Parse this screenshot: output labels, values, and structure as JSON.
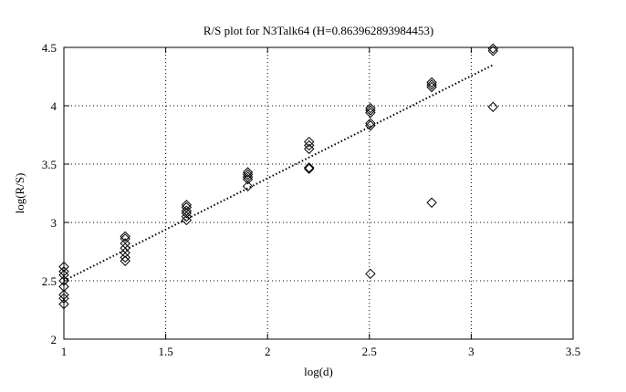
{
  "chart_data": {
    "type": "scatter",
    "title": "R/S plot for N3Talk64 (H=0.863962893984453)",
    "xlabel": "log(d)",
    "ylabel": "log(R/S)",
    "xlim": [
      1,
      3.5
    ],
    "ylim": [
      2,
      4.5
    ],
    "xticks": [
      "1",
      "1.5",
      "2",
      "2.5",
      "3",
      "3.5"
    ],
    "yticks": [
      "2",
      "2.5",
      "3",
      "3.5",
      "4",
      "4.5"
    ],
    "grid": true,
    "marker": "diamond",
    "points": [
      [
        1.0,
        2.62
      ],
      [
        1.0,
        2.58
      ],
      [
        1.0,
        2.55
      ],
      [
        1.0,
        2.5
      ],
      [
        1.0,
        2.45
      ],
      [
        1.0,
        2.38
      ],
      [
        1.0,
        2.35
      ],
      [
        1.0,
        2.3
      ],
      [
        1.301,
        2.88
      ],
      [
        1.301,
        2.86
      ],
      [
        1.301,
        2.82
      ],
      [
        1.301,
        2.78
      ],
      [
        1.301,
        2.74
      ],
      [
        1.301,
        2.7
      ],
      [
        1.301,
        2.67
      ],
      [
        1.602,
        3.15
      ],
      [
        1.602,
        3.13
      ],
      [
        1.602,
        3.1
      ],
      [
        1.602,
        3.08
      ],
      [
        1.602,
        3.05
      ],
      [
        1.602,
        3.02
      ],
      [
        1.903,
        3.43
      ],
      [
        1.903,
        3.41
      ],
      [
        1.903,
        3.39
      ],
      [
        1.903,
        3.37
      ],
      [
        1.903,
        3.31
      ],
      [
        2.204,
        3.69
      ],
      [
        2.204,
        3.66
      ],
      [
        2.204,
        3.63
      ],
      [
        2.204,
        3.47
      ],
      [
        2.204,
        3.46
      ],
      [
        2.505,
        3.98
      ],
      [
        2.505,
        3.96
      ],
      [
        2.505,
        3.94
      ],
      [
        2.505,
        3.85
      ],
      [
        2.505,
        3.83
      ],
      [
        2.505,
        2.56
      ],
      [
        2.806,
        4.2
      ],
      [
        2.806,
        4.18
      ],
      [
        2.806,
        4.16
      ],
      [
        2.806,
        3.17
      ],
      [
        3.107,
        4.49
      ],
      [
        3.107,
        4.47
      ],
      [
        3.107,
        3.99
      ]
    ],
    "fit_line": {
      "x": [
        1.0,
        3.107
      ],
      "y": [
        2.5,
        4.35
      ]
    }
  }
}
